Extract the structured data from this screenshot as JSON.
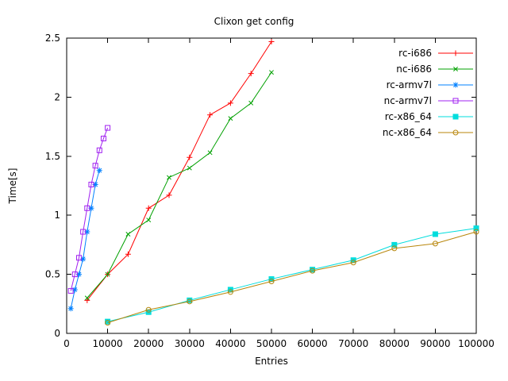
{
  "chart_data": {
    "type": "line",
    "title": "Clixon get config",
    "xlabel": "Entries",
    "ylabel": "Time[s]",
    "xlim": [
      0,
      100000
    ],
    "ylim": [
      0,
      2.5
    ],
    "xticks": [
      0,
      10000,
      20000,
      30000,
      40000,
      50000,
      60000,
      70000,
      80000,
      90000,
      100000
    ],
    "yticks": [
      0,
      0.5,
      1,
      1.5,
      2,
      2.5
    ],
    "grid": false,
    "legend_position": "top-right-inside",
    "border_color": "#000000",
    "text_color": "#000000",
    "series": [
      {
        "name": "rc-i686",
        "color": "#ff0000",
        "marker": "plus",
        "x": [
          5000,
          10000,
          15000,
          20000,
          25000,
          30000,
          35000,
          40000,
          45000,
          50000
        ],
        "y": [
          0.28,
          0.5,
          0.67,
          1.06,
          1.17,
          1.49,
          1.85,
          1.95,
          2.2,
          2.47
        ]
      },
      {
        "name": "nc-i686",
        "color": "#00a000",
        "marker": "cross",
        "x": [
          5000,
          10000,
          15000,
          20000,
          25000,
          30000,
          35000,
          40000,
          45000,
          50000
        ],
        "y": [
          0.3,
          0.5,
          0.84,
          0.96,
          1.32,
          1.4,
          1.53,
          1.82,
          1.95,
          2.21
        ]
      },
      {
        "name": "rc-armv7l",
        "color": "#0080ff",
        "marker": "asterisk",
        "x": [
          1000,
          2000,
          3000,
          4000,
          5000,
          6000,
          7000,
          8000
        ],
        "y": [
          0.21,
          0.37,
          0.5,
          0.63,
          0.86,
          1.06,
          1.26,
          1.38
        ]
      },
      {
        "name": "nc-armv7l",
        "color": "#a020f0",
        "marker": "square-open",
        "x": [
          1000,
          2000,
          3000,
          4000,
          5000,
          6000,
          7000,
          8000,
          9000,
          10000
        ],
        "y": [
          0.36,
          0.5,
          0.64,
          0.86,
          1.06,
          1.26,
          1.42,
          1.55,
          1.65,
          1.74
        ]
      },
      {
        "name": "rc-x86_64",
        "color": "#00dddd",
        "marker": "square-filled",
        "x": [
          10000,
          20000,
          30000,
          40000,
          50000,
          60000,
          70000,
          80000,
          90000,
          100000
        ],
        "y": [
          0.1,
          0.18,
          0.28,
          0.37,
          0.46,
          0.54,
          0.62,
          0.75,
          0.84,
          0.89
        ]
      },
      {
        "name": "nc-x86_64",
        "color": "#b8860b",
        "marker": "circle-open",
        "x": [
          10000,
          20000,
          30000,
          40000,
          50000,
          60000,
          70000,
          80000,
          90000,
          100000
        ],
        "y": [
          0.09,
          0.2,
          0.27,
          0.35,
          0.44,
          0.53,
          0.6,
          0.72,
          0.76,
          0.86
        ]
      }
    ]
  }
}
